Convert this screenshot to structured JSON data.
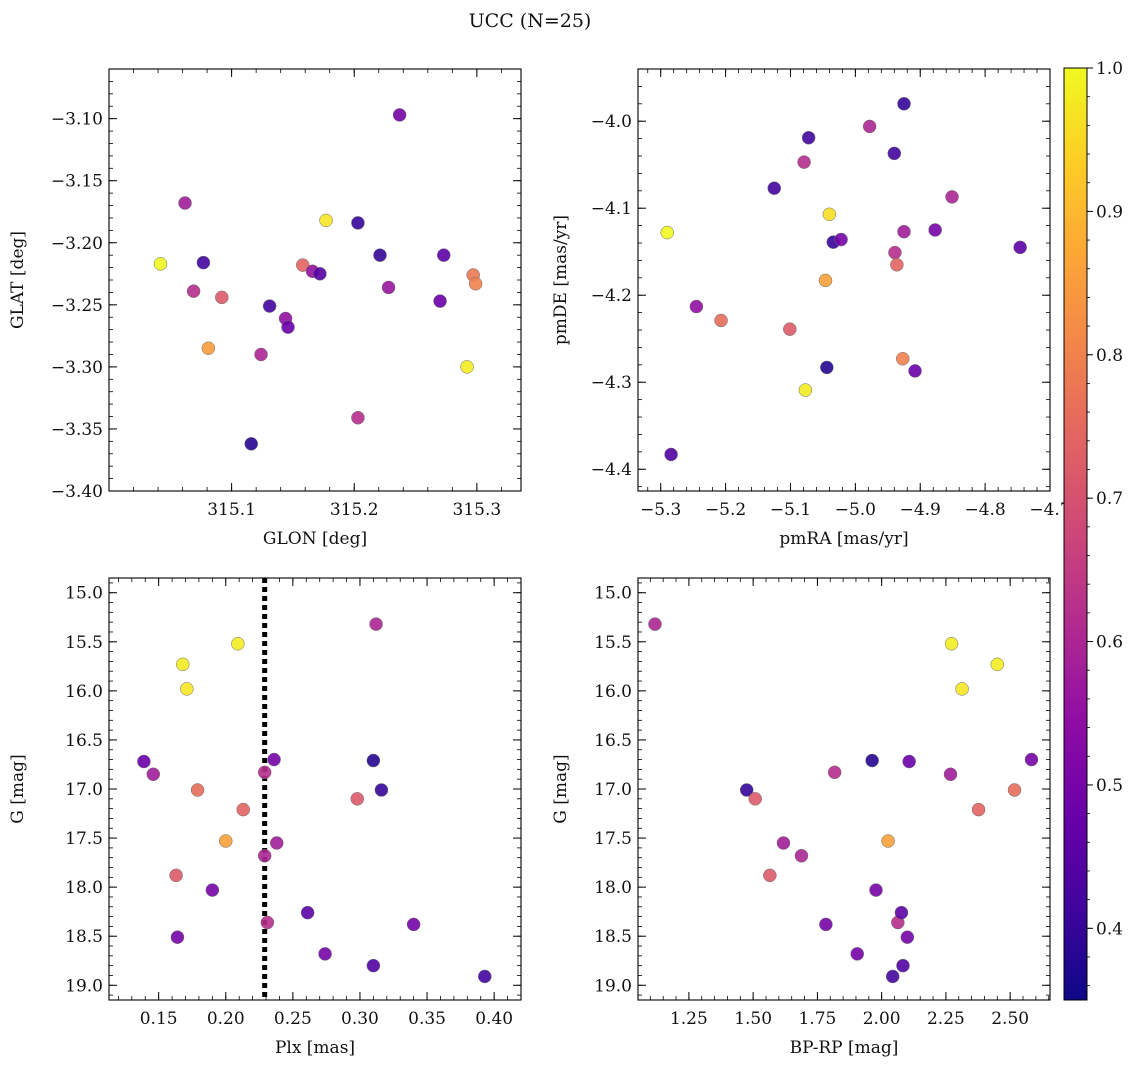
{
  "title": "UCC (N=25)",
  "colorbar": {
    "min": 0.35,
    "max": 1.0,
    "ticks": [
      0.4,
      0.5,
      0.6,
      0.7,
      0.8,
      0.9,
      1.0
    ],
    "tick_labels": [
      "0.4",
      "0.5",
      "0.6",
      "0.7",
      "0.8",
      "0.9",
      "1.0"
    ],
    "colormap": "plasma"
  },
  "chart_data": [
    {
      "type": "scatter",
      "title": "",
      "xlabel": "GLON [deg]",
      "ylabel": "GLAT [deg]",
      "xlim": [
        315.0,
        315.336
      ],
      "ylim": [
        -3.4,
        -3.06
      ],
      "y_inverted": false,
      "xticks": [
        315.1,
        315.2,
        315.3
      ],
      "xtick_labels": [
        "315.1",
        "315.2",
        "315.3"
      ],
      "yticks": [
        -3.1,
        -3.15,
        -3.2,
        -3.25,
        -3.3,
        -3.35,
        -3.4
      ],
      "ytick_labels": [
        "−3.10",
        "−3.15",
        "−3.20",
        "−3.25",
        "−3.30",
        "−3.35",
        "−3.40"
      ],
      "points": [
        {
          "x": 315.042,
          "y": -3.217,
          "c": 1.0
        },
        {
          "x": 315.062,
          "y": -3.168,
          "c": 0.58
        },
        {
          "x": 315.069,
          "y": -3.239,
          "c": 0.62
        },
        {
          "x": 315.077,
          "y": -3.216,
          "c": 0.42
        },
        {
          "x": 315.081,
          "y": -3.285,
          "c": 0.85
        },
        {
          "x": 315.092,
          "y": -3.244,
          "c": 0.72
        },
        {
          "x": 315.116,
          "y": -3.362,
          "c": 0.38
        },
        {
          "x": 315.124,
          "y": -3.29,
          "c": 0.6
        },
        {
          "x": 315.131,
          "y": -3.251,
          "c": 0.42
        },
        {
          "x": 315.144,
          "y": -3.261,
          "c": 0.55
        },
        {
          "x": 315.146,
          "y": -3.268,
          "c": 0.48
        },
        {
          "x": 315.158,
          "y": -3.218,
          "c": 0.74
        },
        {
          "x": 315.166,
          "y": -3.223,
          "c": 0.55
        },
        {
          "x": 315.172,
          "y": -3.225,
          "c": 0.45
        },
        {
          "x": 315.177,
          "y": -3.182,
          "c": 0.97
        },
        {
          "x": 315.203,
          "y": -3.184,
          "c": 0.4
        },
        {
          "x": 315.203,
          "y": -3.341,
          "c": 0.62
        },
        {
          "x": 315.221,
          "y": -3.21,
          "c": 0.4
        },
        {
          "x": 315.228,
          "y": -3.236,
          "c": 0.56
        },
        {
          "x": 315.237,
          "y": -3.097,
          "c": 0.5
        },
        {
          "x": 315.27,
          "y": -3.247,
          "c": 0.48
        },
        {
          "x": 315.273,
          "y": -3.21,
          "c": 0.46
        },
        {
          "x": 315.292,
          "y": -3.3,
          "c": 0.98
        },
        {
          "x": 315.297,
          "y": -3.226,
          "c": 0.78
        },
        {
          "x": 315.299,
          "y": -3.233,
          "c": 0.8
        }
      ]
    },
    {
      "type": "scatter",
      "title": "",
      "xlabel": "pmRA [mas/yr]",
      "ylabel": "pmDE [mas/yr]",
      "xlim": [
        -5.335,
        -4.7
      ],
      "ylim": [
        -4.425,
        -3.94
      ],
      "y_inverted": false,
      "xticks": [
        -5.3,
        -5.2,
        -5.1,
        -5.0,
        -4.9,
        -4.8,
        -4.7
      ],
      "xtick_labels": [
        "−5.3",
        "−5.2",
        "−5.1",
        "−5.0",
        "−4.9",
        "−4.8",
        "−4.7"
      ],
      "yticks": [
        -4.0,
        -4.1,
        -4.2,
        -4.3,
        -4.4
      ],
      "ytick_labels": [
        "−4.0",
        "−4.1",
        "−4.2",
        "−4.3",
        "−4.4"
      ],
      "points": [
        {
          "x": -5.29,
          "y": -4.128,
          "c": 1.0
        },
        {
          "x": -5.284,
          "y": -4.383,
          "c": 0.44
        },
        {
          "x": -5.245,
          "y": -4.213,
          "c": 0.55
        },
        {
          "x": -5.207,
          "y": -4.229,
          "c": 0.76
        },
        {
          "x": -5.125,
          "y": -4.077,
          "c": 0.42
        },
        {
          "x": -5.101,
          "y": -4.239,
          "c": 0.72
        },
        {
          "x": -5.079,
          "y": -4.047,
          "c": 0.62
        },
        {
          "x": -5.077,
          "y": -4.309,
          "c": 0.98
        },
        {
          "x": -5.072,
          "y": -4.019,
          "c": 0.42
        },
        {
          "x": -5.046,
          "y": -4.183,
          "c": 0.86
        },
        {
          "x": -5.044,
          "y": -4.283,
          "c": 0.38
        },
        {
          "x": -5.04,
          "y": -4.107,
          "c": 0.96
        },
        {
          "x": -5.034,
          "y": -4.139,
          "c": 0.4
        },
        {
          "x": -5.022,
          "y": -4.136,
          "c": 0.5
        },
        {
          "x": -4.978,
          "y": -4.006,
          "c": 0.6
        },
        {
          "x": -4.94,
          "y": -4.037,
          "c": 0.42
        },
        {
          "x": -4.939,
          "y": -4.151,
          "c": 0.62
        },
        {
          "x": -4.936,
          "y": -4.165,
          "c": 0.74
        },
        {
          "x": -4.927,
          "y": -4.273,
          "c": 0.8
        },
        {
          "x": -4.925,
          "y": -4.127,
          "c": 0.58
        },
        {
          "x": -4.925,
          "y": -3.98,
          "c": 0.4
        },
        {
          "x": -4.908,
          "y": -4.287,
          "c": 0.48
        },
        {
          "x": -4.877,
          "y": -4.125,
          "c": 0.5
        },
        {
          "x": -4.851,
          "y": -4.087,
          "c": 0.6
        },
        {
          "x": -4.746,
          "y": -4.145,
          "c": 0.46
        }
      ]
    },
    {
      "type": "scatter",
      "title": "",
      "xlabel": "Plx [mas]",
      "ylabel": "G [mag]",
      "xlim": [
        0.113,
        0.42
      ],
      "ylim": [
        19.15,
        14.85
      ],
      "y_inverted": true,
      "vline": {
        "x": 0.229,
        "style": "dotted"
      },
      "xticks": [
        0.15,
        0.2,
        0.25,
        0.3,
        0.35,
        0.4
      ],
      "xtick_labels": [
        "0.15",
        "0.20",
        "0.25",
        "0.30",
        "0.35",
        "0.40"
      ],
      "yticks": [
        15.0,
        15.5,
        16.0,
        16.5,
        17.0,
        17.5,
        18.0,
        18.5,
        19.0
      ],
      "ytick_labels": [
        "15.0",
        "15.5",
        "16.0",
        "16.5",
        "17.0",
        "17.5",
        "18.0",
        "18.5",
        "19.0"
      ],
      "points": [
        {
          "x": 0.139,
          "y": 16.72,
          "c": 0.48
        },
        {
          "x": 0.146,
          "y": 16.85,
          "c": 0.58
        },
        {
          "x": 0.163,
          "y": 17.88,
          "c": 0.72
        },
        {
          "x": 0.164,
          "y": 18.51,
          "c": 0.5
        },
        {
          "x": 0.168,
          "y": 15.73,
          "c": 0.98
        },
        {
          "x": 0.171,
          "y": 15.98,
          "c": 0.97
        },
        {
          "x": 0.179,
          "y": 17.01,
          "c": 0.76
        },
        {
          "x": 0.19,
          "y": 18.03,
          "c": 0.5
        },
        {
          "x": 0.2,
          "y": 17.53,
          "c": 0.86
        },
        {
          "x": 0.209,
          "y": 15.52,
          "c": 0.98
        },
        {
          "x": 0.213,
          "y": 17.21,
          "c": 0.74
        },
        {
          "x": 0.229,
          "y": 16.83,
          "c": 0.62
        },
        {
          "x": 0.229,
          "y": 17.68,
          "c": 0.6
        },
        {
          "x": 0.231,
          "y": 18.36,
          "c": 0.62
        },
        {
          "x": 0.236,
          "y": 16.7,
          "c": 0.5
        },
        {
          "x": 0.238,
          "y": 17.55,
          "c": 0.58
        },
        {
          "x": 0.261,
          "y": 18.26,
          "c": 0.46
        },
        {
          "x": 0.274,
          "y": 18.68,
          "c": 0.5
        },
        {
          "x": 0.298,
          "y": 17.1,
          "c": 0.72
        },
        {
          "x": 0.31,
          "y": 16.71,
          "c": 0.38
        },
        {
          "x": 0.31,
          "y": 18.8,
          "c": 0.44
        },
        {
          "x": 0.312,
          "y": 15.32,
          "c": 0.6
        },
        {
          "x": 0.316,
          "y": 17.01,
          "c": 0.4
        },
        {
          "x": 0.34,
          "y": 18.38,
          "c": 0.5
        },
        {
          "x": 0.393,
          "y": 18.91,
          "c": 0.42
        }
      ]
    },
    {
      "type": "scatter",
      "title": "",
      "xlabel": "BP-RP [mag]",
      "ylabel": "G [mag]",
      "xlim": [
        1.052,
        2.655
      ],
      "ylim": [
        19.15,
        14.85
      ],
      "y_inverted": true,
      "xticks": [
        1.25,
        1.5,
        1.75,
        2.0,
        2.25,
        2.5
      ],
      "xtick_labels": [
        "1.25",
        "1.50",
        "1.75",
        "2.00",
        "2.25",
        "2.50"
      ],
      "yticks": [
        15.0,
        15.5,
        16.0,
        16.5,
        17.0,
        17.5,
        18.0,
        18.5,
        19.0
      ],
      "ytick_labels": [
        "15.0",
        "15.5",
        "16.0",
        "16.5",
        "17.0",
        "17.5",
        "18.0",
        "18.5",
        "19.0"
      ],
      "points": [
        {
          "x": 1.118,
          "y": 15.32,
          "c": 0.6
        },
        {
          "x": 1.475,
          "y": 17.01,
          "c": 0.4
        },
        {
          "x": 1.508,
          "y": 17.1,
          "c": 0.72
        },
        {
          "x": 1.565,
          "y": 17.88,
          "c": 0.72
        },
        {
          "x": 1.618,
          "y": 17.55,
          "c": 0.58
        },
        {
          "x": 1.688,
          "y": 17.68,
          "c": 0.6
        },
        {
          "x": 1.783,
          "y": 18.38,
          "c": 0.5
        },
        {
          "x": 1.817,
          "y": 16.83,
          "c": 0.62
        },
        {
          "x": 1.905,
          "y": 18.68,
          "c": 0.5
        },
        {
          "x": 1.963,
          "y": 16.71,
          "c": 0.38
        },
        {
          "x": 1.978,
          "y": 18.03,
          "c": 0.5
        },
        {
          "x": 2.025,
          "y": 17.53,
          "c": 0.86
        },
        {
          "x": 2.043,
          "y": 18.91,
          "c": 0.42
        },
        {
          "x": 2.063,
          "y": 18.36,
          "c": 0.62
        },
        {
          "x": 2.077,
          "y": 18.26,
          "c": 0.46
        },
        {
          "x": 2.083,
          "y": 18.8,
          "c": 0.44
        },
        {
          "x": 2.1,
          "y": 18.51,
          "c": 0.5
        },
        {
          "x": 2.107,
          "y": 16.72,
          "c": 0.48
        },
        {
          "x": 2.268,
          "y": 16.85,
          "c": 0.58
        },
        {
          "x": 2.272,
          "y": 15.52,
          "c": 0.98
        },
        {
          "x": 2.313,
          "y": 15.98,
          "c": 0.97
        },
        {
          "x": 2.377,
          "y": 17.21,
          "c": 0.74
        },
        {
          "x": 2.45,
          "y": 15.73,
          "c": 0.98
        },
        {
          "x": 2.517,
          "y": 17.01,
          "c": 0.76
        },
        {
          "x": 2.583,
          "y": 16.7,
          "c": 0.5
        }
      ]
    }
  ]
}
